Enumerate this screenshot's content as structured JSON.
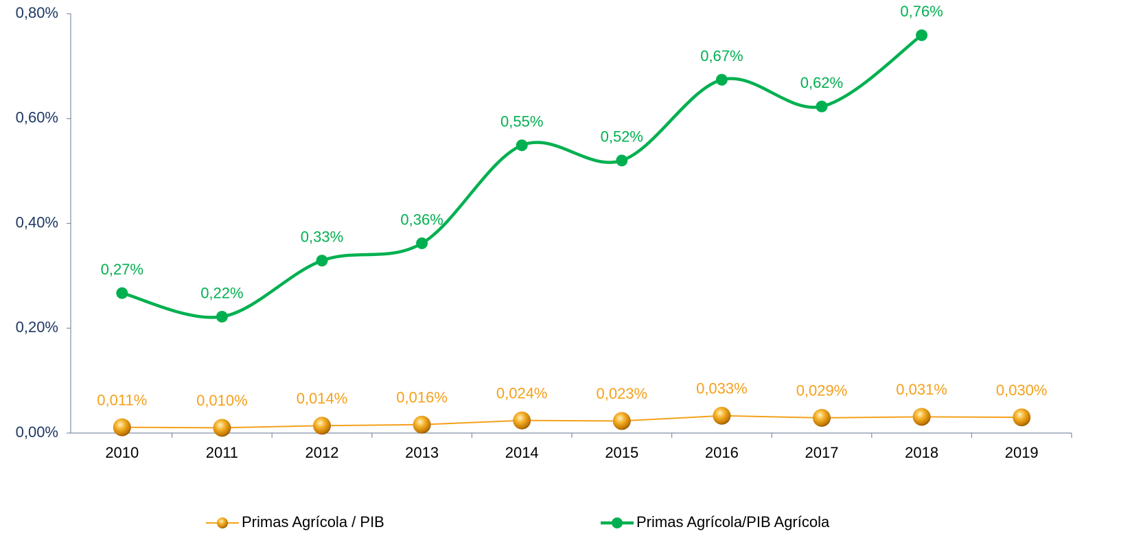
{
  "chart_data": {
    "type": "line",
    "categories": [
      "2010",
      "2011",
      "2012",
      "2013",
      "2014",
      "2015",
      "2016",
      "2017",
      "2018",
      "2019"
    ],
    "series": [
      {
        "name": "Primas Agrícola / PIB",
        "color": "#f5a01a",
        "marker": "sphere",
        "smooth": false,
        "values": [
          0.011,
          0.01,
          0.014,
          0.016,
          0.024,
          0.023,
          0.033,
          0.029,
          0.031,
          0.03
        ],
        "value_labels": [
          "0,011%",
          "0,010%",
          "0,014%",
          "0,016%",
          "0,024%",
          "0,023%",
          "0,033%",
          "0,029%",
          "0,031%",
          "0,030%"
        ]
      },
      {
        "name": "Primas Agrícola/PIB Agrícola",
        "color": "#00b050",
        "marker": "circle",
        "smooth": true,
        "values": [
          0.267,
          0.222,
          0.329,
          0.362,
          0.549,
          0.52,
          0.674,
          0.623,
          0.759,
          null
        ],
        "value_labels": [
          "0,27%",
          "0,22%",
          "0,33%",
          "0,36%",
          "0,55%",
          "0,52%",
          "0,67%",
          "0,62%",
          "0,76%",
          null
        ]
      }
    ],
    "ylim": [
      0,
      0.8
    ],
    "yticks": [
      {
        "value": 0,
        "label": "0,00%"
      },
      {
        "value": 0.2,
        "label": "0,20%"
      },
      {
        "value": 0.4,
        "label": "0,40%"
      },
      {
        "value": 0.6,
        "label": "0,60%"
      },
      {
        "value": 0.8,
        "label": "0,80%"
      }
    ],
    "grid": false,
    "legend": "bottom"
  }
}
